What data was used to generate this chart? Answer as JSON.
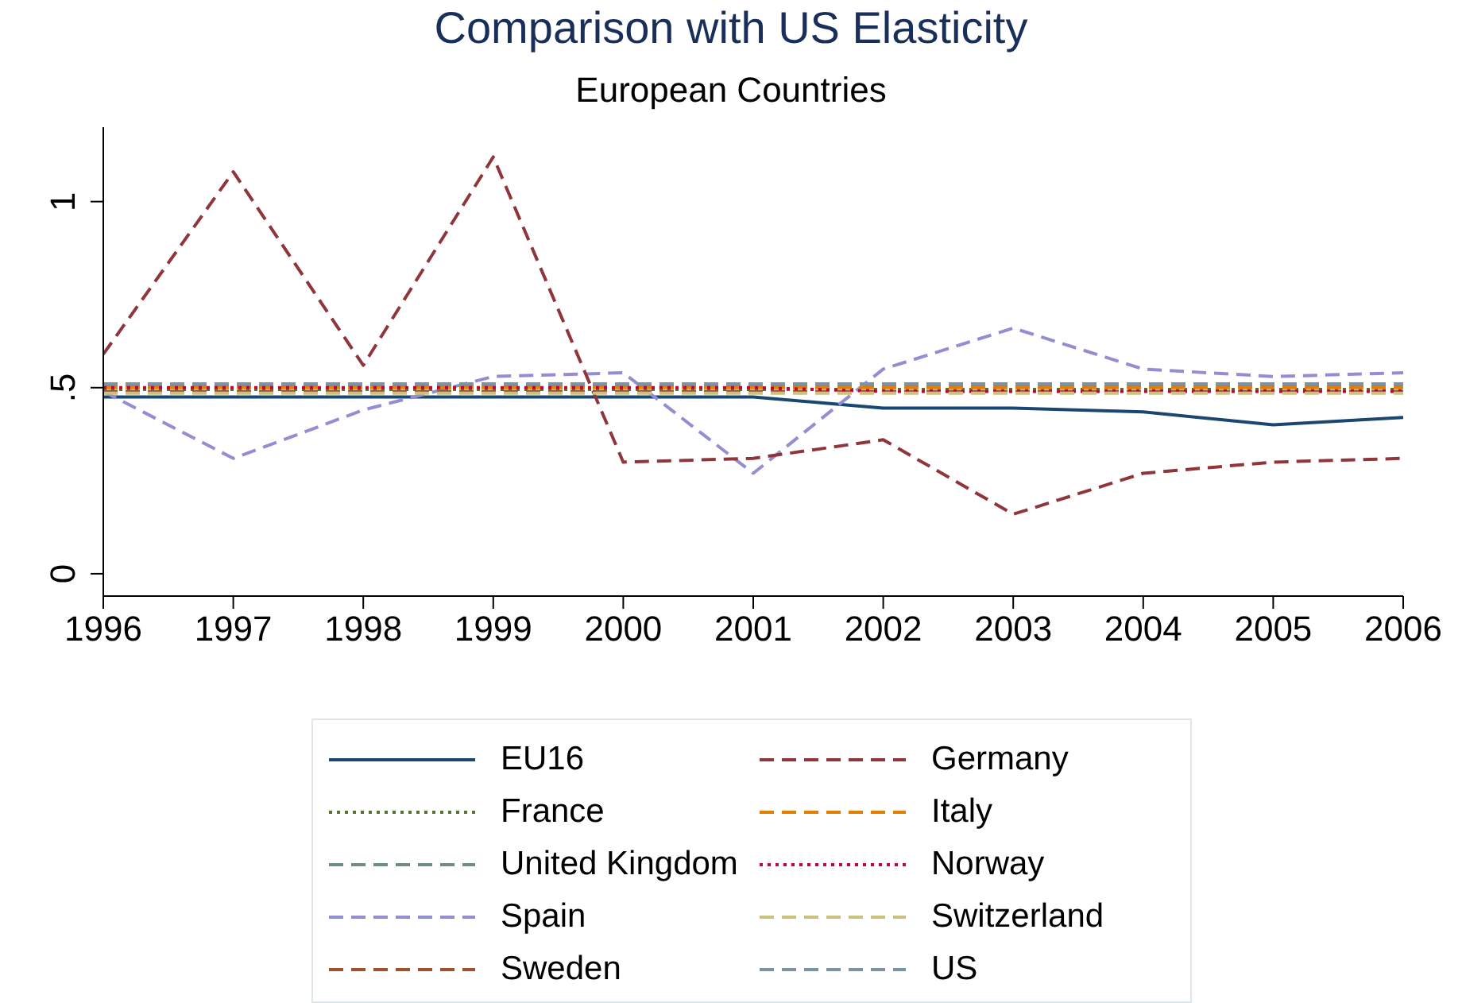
{
  "chart_data": {
    "type": "line",
    "title": "Comparison with US Elasticity",
    "subtitle": "European Countries",
    "x": [
      1996,
      1997,
      1998,
      1999,
      2000,
      2001,
      2002,
      2003,
      2004,
      2005,
      2006
    ],
    "xlim": [
      1996,
      2006
    ],
    "xticks": [
      1996,
      1997,
      1998,
      1999,
      2000,
      2001,
      2002,
      2003,
      2004,
      2005,
      2006
    ],
    "ylim": [
      -0.06,
      1.2
    ],
    "yticks": [
      0,
      {
        "value": 0.5,
        "label": ".5"
      },
      1
    ],
    "grid": false,
    "legend": "bottom",
    "marker": "none",
    "series": [
      {
        "name": "EU16",
        "color": "#1a476f",
        "line_style": "solid",
        "values": [
          0.475,
          0.475,
          0.475,
          0.475,
          0.475,
          0.475,
          0.445,
          0.445,
          0.435,
          0.4,
          0.42
        ]
      },
      {
        "name": "France",
        "color": "#55752f",
        "line_style": "dotted",
        "values": [
          0.495,
          0.495,
          0.495,
          0.495,
          0.495,
          0.495,
          0.495,
          0.495,
          0.495,
          0.495,
          0.495
        ]
      },
      {
        "name": "United Kingdom",
        "color": "#6e8e84",
        "line_style": "dashed",
        "values": [
          0.505,
          0.505,
          0.505,
          0.505,
          0.505,
          0.505,
          0.505,
          0.505,
          0.505,
          0.505,
          0.505
        ]
      },
      {
        "name": "Spain",
        "color": "#938dd2",
        "line_style": "dashed",
        "values": [
          0.49,
          0.31,
          0.44,
          0.53,
          0.54,
          0.27,
          0.55,
          0.66,
          0.55,
          0.53,
          0.54
        ]
      },
      {
        "name": "Sweden",
        "color": "#a0522d",
        "line_style": "dashed",
        "values": [
          0.49,
          0.49,
          0.49,
          0.49,
          0.49,
          0.49,
          0.49,
          0.49,
          0.49,
          0.49,
          0.49
        ]
      },
      {
        "name": "Germany",
        "color": "#90353b",
        "line_style": "dashed",
        "values": [
          0.59,
          1.08,
          0.56,
          1.12,
          0.3,
          0.31,
          0.36,
          0.16,
          0.27,
          0.3,
          0.31
        ]
      },
      {
        "name": "Italy",
        "color": "#e37e00",
        "line_style": "dashed",
        "values": [
          0.5,
          0.5,
          0.5,
          0.5,
          0.5,
          0.5,
          0.5,
          0.5,
          0.5,
          0.5,
          0.5
        ]
      },
      {
        "name": "Norway",
        "color": "#c10534",
        "line_style": "dotted",
        "values": [
          0.5,
          0.5,
          0.5,
          0.5,
          0.5,
          0.5,
          0.49,
          0.49,
          0.49,
          0.49,
          0.49
        ]
      },
      {
        "name": "Switzerland",
        "color": "#cac27e",
        "line_style": "dashed",
        "values": [
          0.485,
          0.485,
          0.485,
          0.485,
          0.485,
          0.485,
          0.485,
          0.485,
          0.485,
          0.485,
          0.485
        ]
      },
      {
        "name": "US",
        "color": "#7b92a8",
        "line_style": "dashed",
        "values": [
          0.51,
          0.51,
          0.51,
          0.51,
          0.51,
          0.51,
          0.51,
          0.51,
          0.51,
          0.51,
          0.51
        ]
      }
    ]
  }
}
